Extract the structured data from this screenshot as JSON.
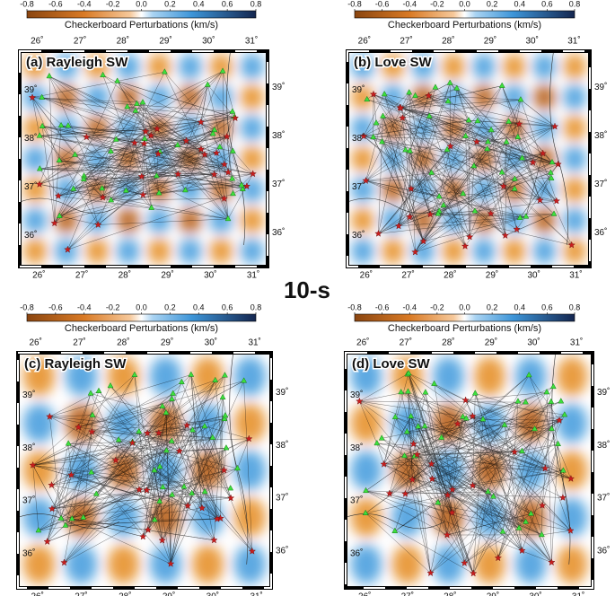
{
  "center_label": "10-s",
  "colorbar": {
    "title": "Checkerboard Perturbations (km/s)",
    "ticks": [
      -0.8,
      -0.6,
      -0.4,
      -0.2,
      {
        "value": 0,
        "label": "0.0"
      },
      0.2,
      0.4,
      0.6,
      0.8
    ]
  },
  "lon_labels": [
    "26˚",
    "27˚",
    "28˚",
    "29˚",
    "30˚",
    "31˚"
  ],
  "lat_labels": [
    "39˚",
    "38˚",
    "37˚",
    "36˚"
  ],
  "panels": [
    {
      "label": "(a) Rayleigh SW"
    },
    {
      "label": "(b) Love SW"
    },
    {
      "label": "(c) Rayleigh SW"
    },
    {
      "label": "(d) Love SW"
    }
  ]
}
